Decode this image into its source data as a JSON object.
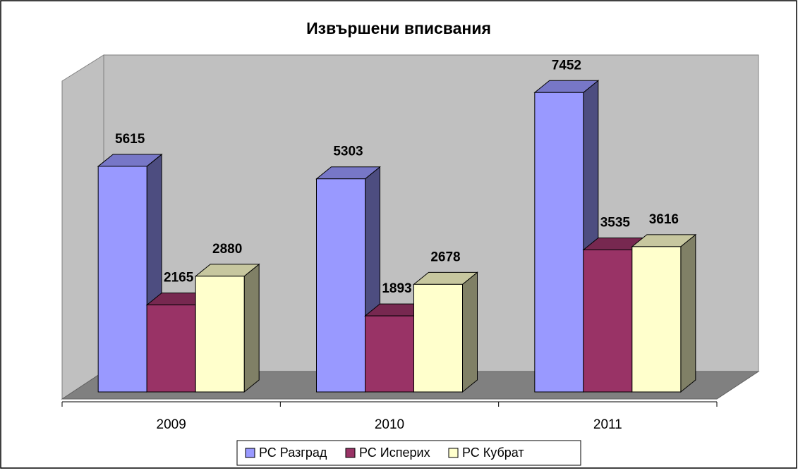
{
  "chart_data": {
    "type": "bar3d",
    "title": "Извършени вписвания",
    "categories": [
      "2009",
      "2010",
      "2011"
    ],
    "series": [
      {
        "name": "РС Разград",
        "color": "#9999ff",
        "values": [
          5615,
          5303,
          7452
        ]
      },
      {
        "name": "РС Исперих",
        "color": "#993366",
        "values": [
          2165,
          1893,
          3535
        ]
      },
      {
        "name": "РС Кубрат",
        "color": "#ffffcc",
        "values": [
          2880,
          2678,
          3616
        ]
      }
    ],
    "ylim": [
      0,
      8000
    ],
    "legend": "bottom"
  }
}
